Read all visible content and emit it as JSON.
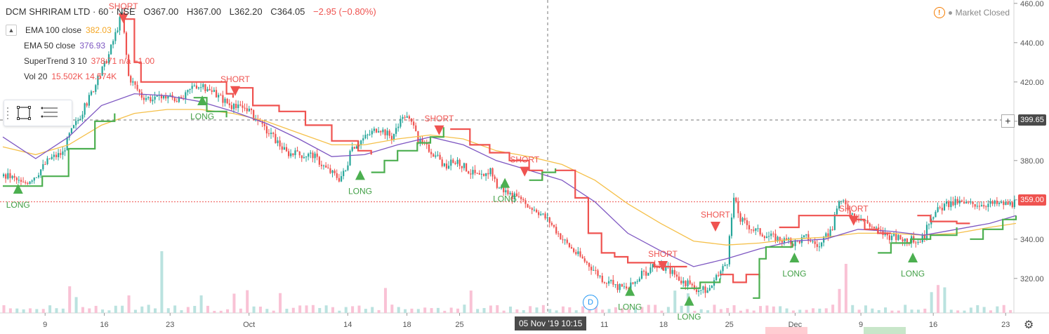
{
  "header": {
    "symbol": "DCM SHRIRAM LTD",
    "interval": "60",
    "exchange": "NSE",
    "open": "O367.00",
    "high": "H367.00",
    "low": "L362.20",
    "close": "C364.05",
    "change": "−2.95 (−0.80%)"
  },
  "legend": [
    {
      "name": "EMA 100 close",
      "value": "382.03",
      "color": "#f5a623"
    },
    {
      "name": "EMA 50 close",
      "value": "376.93",
      "color": "#7e57c2"
    },
    {
      "name": "SuperTrend 3 10",
      "value": "378.71 n/a −1.00",
      "color": "#ef5350"
    },
    {
      "name": "Vol 20",
      "value": "15.502K 14.574K",
      "color": "#ef5350"
    }
  ],
  "status": {
    "text": "Market Closed"
  },
  "crosshair": {
    "date_label": "05 Nov '19  10:15",
    "price_label": "399.65"
  },
  "last_price_label": "359.00",
  "event_marker": "D",
  "colors": {
    "up": "#26a69a",
    "down": "#ef5350",
    "supertrend_up": "#4caf50",
    "supertrend_down": "#ef5350",
    "ema100": "#f5c04a",
    "ema50": "#7e57c2"
  },
  "icons": [
    "collapse-icon",
    "rectangle-tool-icon",
    "lines-tool-icon",
    "alert-icon",
    "plus-icon",
    "gear-icon"
  ],
  "chart_data": {
    "type": "candlestick",
    "x_ticks": [
      "9",
      "16",
      "23",
      "Oct",
      "14",
      "18",
      "25",
      "11",
      "18",
      "25",
      "Dec",
      "9",
      "16",
      "23"
    ],
    "y_ticks": [
      320,
      340,
      360,
      380,
      400,
      420,
      440,
      460
    ],
    "ylim": [
      303,
      461
    ],
    "close_path": [
      [
        0,
        372
      ],
      [
        1,
        372
      ],
      [
        3,
        368
      ],
      [
        5,
        373
      ],
      [
        7,
        381
      ],
      [
        9,
        384
      ],
      [
        10,
        393
      ],
      [
        12,
        405
      ],
      [
        14,
        419
      ],
      [
        16,
        434
      ],
      [
        18,
        455
      ],
      [
        19,
        423
      ],
      [
        21,
        413
      ],
      [
        23,
        411
      ],
      [
        25,
        413
      ],
      [
        27,
        410
      ],
      [
        29,
        419
      ],
      [
        31,
        416
      ],
      [
        33,
        412
      ],
      [
        35,
        407
      ],
      [
        37,
        407
      ],
      [
        39,
        398
      ],
      [
        41,
        392
      ],
      [
        43,
        384
      ],
      [
        45,
        383
      ],
      [
        47,
        383
      ],
      [
        49,
        376
      ],
      [
        51,
        371
      ],
      [
        52,
        375
      ],
      [
        53,
        387
      ],
      [
        55,
        392
      ],
      [
        57,
        397
      ],
      [
        59,
        392
      ],
      [
        61,
        403
      ],
      [
        62,
        399
      ],
      [
        63,
        390
      ],
      [
        65,
        385
      ],
      [
        67,
        377
      ],
      [
        69,
        380
      ],
      [
        70,
        377
      ],
      [
        71,
        374
      ],
      [
        73,
        371
      ],
      [
        74,
        376
      ],
      [
        75,
        367
      ],
      [
        77,
        363
      ],
      [
        79,
        358
      ],
      [
        81,
        355
      ],
      [
        83,
        349
      ],
      [
        85,
        340
      ],
      [
        87,
        333
      ],
      [
        89,
        327
      ],
      [
        91,
        320
      ],
      [
        93,
        316
      ],
      [
        95,
        315
      ],
      [
        97,
        322
      ],
      [
        99,
        326
      ],
      [
        101,
        325
      ],
      [
        103,
        319
      ],
      [
        105,
        315
      ],
      [
        107,
        314
      ],
      [
        108,
        318
      ],
      [
        110,
        329
      ],
      [
        111,
        361
      ],
      [
        112,
        350
      ],
      [
        114,
        345
      ],
      [
        116,
        342
      ],
      [
        118,
        340
      ],
      [
        120,
        338
      ],
      [
        122,
        341
      ],
      [
        124,
        336
      ],
      [
        126,
        346
      ],
      [
        127,
        360
      ],
      [
        128,
        357
      ],
      [
        129,
        353
      ],
      [
        131,
        349
      ],
      [
        133,
        344
      ],
      [
        135,
        341
      ],
      [
        137,
        340
      ],
      [
        139,
        339
      ],
      [
        140,
        342
      ],
      [
        141,
        352
      ],
      [
        143,
        357
      ],
      [
        145,
        359
      ],
      [
        146,
        358
      ]
    ],
    "supertrend": [
      {
        "dir": "up",
        "points": [
          [
            0,
            367
          ],
          [
            3,
            367
          ],
          [
            6,
            372
          ],
          [
            10,
            386
          ],
          [
            14,
            400
          ],
          [
            17,
            404
          ]
        ]
      },
      {
        "dir": "down",
        "points": [
          [
            18,
            452
          ],
          [
            20,
            430
          ],
          [
            21,
            420
          ],
          [
            24,
            420
          ],
          [
            30,
            420
          ],
          [
            34,
            414
          ],
          [
            35,
            412
          ]
        ]
      },
      {
        "dir": "up",
        "points": [
          [
            29,
            412
          ],
          [
            31,
            405
          ],
          [
            34,
            402
          ]
        ]
      },
      {
        "dir": "down",
        "points": [
          [
            35,
            417
          ],
          [
            38,
            408
          ],
          [
            42,
            405
          ],
          [
            46,
            398
          ],
          [
            50,
            390
          ],
          [
            54,
            385
          ],
          [
            56,
            383
          ]
        ]
      },
      {
        "dir": "up",
        "points": [
          [
            56,
            374
          ],
          [
            58,
            380
          ],
          [
            60,
            385
          ],
          [
            63,
            389
          ],
          [
            65,
            392
          ],
          [
            67,
            397
          ]
        ]
      },
      {
        "dir": "down",
        "points": [
          [
            68,
            396
          ],
          [
            71,
            388
          ],
          [
            74,
            384
          ],
          [
            77,
            380
          ],
          [
            80,
            375
          ],
          [
            82,
            370
          ]
        ]
      },
      {
        "dir": "up",
        "points": [
          [
            80,
            370
          ],
          [
            82,
            374
          ],
          [
            84,
            376
          ]
        ]
      },
      {
        "dir": "down",
        "points": [
          [
            84,
            375
          ],
          [
            87,
            361
          ],
          [
            89,
            343
          ],
          [
            91,
            333
          ],
          [
            93,
            331
          ],
          [
            95,
            328
          ],
          [
            99,
            326
          ],
          [
            104,
            326
          ]
        ]
      },
      {
        "dir": "up",
        "points": [
          [
            103,
            315
          ],
          [
            106,
            318
          ],
          [
            109,
            320
          ]
        ]
      },
      {
        "dir": "down",
        "points": [
          [
            109,
            322
          ],
          [
            111,
            318
          ],
          [
            113,
            322
          ],
          [
            115,
            320
          ]
        ]
      },
      {
        "dir": "up",
        "points": [
          [
            114,
            310
          ],
          [
            115,
            330
          ],
          [
            116,
            336
          ],
          [
            118,
            336
          ],
          [
            120,
            339
          ]
        ]
      },
      {
        "dir": "down",
        "points": [
          [
            118,
            346
          ],
          [
            121,
            352
          ],
          [
            125,
            352
          ],
          [
            129,
            350
          ],
          [
            131,
            345
          ],
          [
            133,
            343
          ],
          [
            135,
            343
          ]
        ]
      },
      {
        "dir": "up",
        "points": [
          [
            133,
            333
          ],
          [
            135,
            338
          ],
          [
            138,
            340
          ],
          [
            141,
            342
          ],
          [
            144,
            342
          ],
          [
            145,
            346
          ]
        ]
      },
      {
        "dir": "down",
        "points": [
          [
            139,
            352
          ],
          [
            141,
            349
          ],
          [
            145,
            348
          ],
          [
            147,
            348
          ]
        ]
      },
      {
        "dir": "up",
        "points": [
          [
            147,
            340
          ],
          [
            149,
            345
          ],
          [
            152,
            350
          ],
          [
            154,
            352
          ]
        ]
      }
    ],
    "ema50": [
      [
        0,
        392
      ],
      [
        5,
        381
      ],
      [
        10,
        392
      ],
      [
        15,
        408
      ],
      [
        20,
        414
      ],
      [
        25,
        413
      ],
      [
        30,
        410
      ],
      [
        35,
        405
      ],
      [
        40,
        399
      ],
      [
        45,
        391
      ],
      [
        50,
        382
      ],
      [
        55,
        383
      ],
      [
        60,
        388
      ],
      [
        65,
        392
      ],
      [
        70,
        388
      ],
      [
        75,
        380
      ],
      [
        80,
        375
      ],
      [
        85,
        370
      ],
      [
        90,
        359
      ],
      [
        95,
        343
      ],
      [
        100,
        334
      ],
      [
        105,
        326
      ],
      [
        110,
        330
      ],
      [
        115,
        335
      ],
      [
        120,
        339
      ],
      [
        125,
        340
      ],
      [
        130,
        345
      ],
      [
        135,
        344
      ],
      [
        140,
        342
      ],
      [
        145,
        345
      ],
      [
        150,
        348
      ],
      [
        154,
        352
      ]
    ],
    "ema100": [
      [
        0,
        387
      ],
      [
        5,
        383
      ],
      [
        10,
        388
      ],
      [
        15,
        398
      ],
      [
        20,
        404
      ],
      [
        25,
        406
      ],
      [
        30,
        406
      ],
      [
        35,
        404
      ],
      [
        40,
        400
      ],
      [
        45,
        394
      ],
      [
        50,
        388
      ],
      [
        55,
        388
      ],
      [
        60,
        391
      ],
      [
        65,
        393
      ],
      [
        70,
        391
      ],
      [
        75,
        385
      ],
      [
        80,
        382
      ],
      [
        85,
        378
      ],
      [
        90,
        370
      ],
      [
        95,
        358
      ],
      [
        100,
        348
      ],
      [
        105,
        339
      ],
      [
        110,
        337
      ],
      [
        115,
        338
      ],
      [
        120,
        340
      ],
      [
        125,
        341
      ],
      [
        130,
        343
      ],
      [
        135,
        343
      ],
      [
        140,
        342
      ],
      [
        145,
        343
      ],
      [
        150,
        346
      ],
      [
        154,
        348
      ]
    ],
    "signals": [
      {
        "type": "LONG",
        "bar": 2,
        "price": 366
      },
      {
        "type": "SHORT",
        "bar": 18,
        "price": 452
      },
      {
        "type": "LONG",
        "bar": 30,
        "price": 411
      },
      {
        "type": "SHORT",
        "bar": 35,
        "price": 415
      },
      {
        "type": "LONG",
        "bar": 54,
        "price": 373
      },
      {
        "type": "SHORT",
        "bar": 66,
        "price": 395
      },
      {
        "type": "LONG",
        "bar": 76,
        "price": 369
      },
      {
        "type": "SHORT",
        "bar": 79,
        "price": 374
      },
      {
        "type": "LONG",
        "bar": 95,
        "price": 314
      },
      {
        "type": "SHORT",
        "bar": 100,
        "price": 326
      },
      {
        "type": "LONG",
        "bar": 104,
        "price": 309
      },
      {
        "type": "SHORT",
        "bar": 108,
        "price": 346
      },
      {
        "type": "LONG",
        "bar": 120,
        "price": 331
      },
      {
        "type": "SHORT",
        "bar": 129,
        "price": 349
      },
      {
        "type": "LONG",
        "bar": 138,
        "price": 331
      }
    ]
  }
}
